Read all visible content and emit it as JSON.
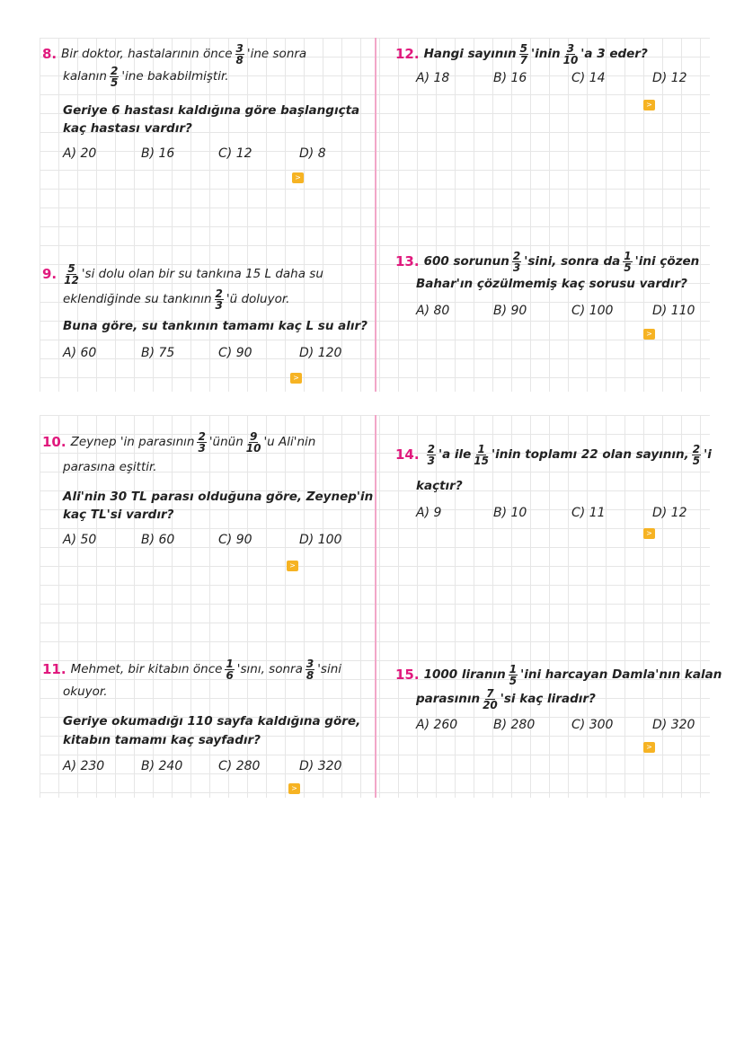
{
  "questions": [
    {
      "number": "8.",
      "lines": [
        {
          "bold": false,
          "segs": [
            {
              "t": "Bir doktor, hastalarının önce "
            },
            {
              "n": "3",
              "d": "8"
            },
            {
              "t": "'ine sonra"
            }
          ]
        },
        {
          "bold": false,
          "segs": [
            {
              "t": "kalanın "
            },
            {
              "n": "2",
              "d": "5"
            },
            {
              "t": "'ine bakabilmiştir."
            }
          ]
        },
        {
          "bold": true,
          "segs": [
            {
              "t": "Geriye 6 hastası kaldığına göre başlangıçta"
            }
          ]
        },
        {
          "bold": true,
          "segs": [
            {
              "t": "kaç hastası vardır?"
            }
          ]
        }
      ],
      "options": [
        "A) 20",
        "B) 16",
        "C) 12",
        "D) 8"
      ]
    },
    {
      "number": "9.",
      "lines": [
        {
          "bold": false,
          "segs": [
            {
              "n": "5",
              "d": "12"
            },
            {
              "t": "'si dolu olan bir su tankına 15 L daha su"
            }
          ]
        },
        {
          "bold": false,
          "segs": [
            {
              "t": "eklendiğinde su tankının "
            },
            {
              "n": "2",
              "d": "3"
            },
            {
              "t": "'ü doluyor."
            }
          ]
        },
        {
          "bold": true,
          "segs": [
            {
              "t": "Buna göre, su tankının tamamı kaç L su alır?"
            }
          ]
        }
      ],
      "options": [
        "A) 60",
        "B) 75",
        "C) 90",
        "D) 120"
      ]
    },
    {
      "number": "10.",
      "lines": [
        {
          "bold": false,
          "segs": [
            {
              "t": "Zeynep 'in parasının "
            },
            {
              "n": "2",
              "d": "3"
            },
            {
              "t": "'ünün "
            },
            {
              "n": "9",
              "d": "10"
            },
            {
              "t": "'u Ali'nin"
            }
          ]
        },
        {
          "bold": false,
          "segs": [
            {
              "t": "parasına eşittir."
            }
          ]
        },
        {
          "bold": true,
          "segs": [
            {
              "t": "Ali'nin 30 TL parası olduğuna göre, Zeynep'in"
            }
          ]
        },
        {
          "bold": true,
          "segs": [
            {
              "t": "kaç TL'si vardır?"
            }
          ]
        }
      ],
      "options": [
        "A) 50",
        "B) 60",
        "C) 90",
        "D) 100"
      ]
    },
    {
      "number": "11.",
      "lines": [
        {
          "bold": false,
          "segs": [
            {
              "t": "Mehmet, bir kitabın önce "
            },
            {
              "n": "1",
              "d": "6"
            },
            {
              "t": "'sını, sonra "
            },
            {
              "n": "3",
              "d": "8"
            },
            {
              "t": "'sini"
            }
          ]
        },
        {
          "bold": false,
          "segs": [
            {
              "t": "okuyor."
            }
          ]
        },
        {
          "bold": true,
          "segs": [
            {
              "t": "Geriye okumadığı 110 sayfa kaldığına göre,"
            }
          ]
        },
        {
          "bold": true,
          "segs": [
            {
              "t": "kitabın tamamı kaç sayfadır?"
            }
          ]
        }
      ],
      "options": [
        "A) 230",
        "B) 240",
        "C) 280",
        "D) 320"
      ]
    },
    {
      "number": "12.",
      "lines": [
        {
          "bold": true,
          "segs": [
            {
              "t": "Hangi sayının "
            },
            {
              "n": "5",
              "d": "7"
            },
            {
              "t": " 'inin "
            },
            {
              "n": "3",
              "d": "10"
            },
            {
              "t": "'a 3 eder?"
            }
          ]
        }
      ],
      "options": [
        "A) 18",
        "B) 16",
        "C) 14",
        "D) 12"
      ]
    },
    {
      "number": "13.",
      "lines": [
        {
          "bold": true,
          "segs": [
            {
              "t": "600 sorunun "
            },
            {
              "n": "2",
              "d": "3"
            },
            {
              "t": "'sini, sonra da "
            },
            {
              "n": "1",
              "d": "5"
            },
            {
              "t": "'ini çözen"
            }
          ]
        },
        {
          "bold": true,
          "segs": [
            {
              "t": "Bahar'ın çözülmemiş kaç sorusu vardır?"
            }
          ]
        }
      ],
      "options": [
        "A) 80",
        "B) 90",
        "C) 100",
        "D) 110"
      ]
    },
    {
      "number": "14.",
      "lines": [
        {
          "bold": true,
          "segs": [
            {
              "n": "2",
              "d": "3"
            },
            {
              "t": "'a ile "
            },
            {
              "n": "1",
              "d": "15"
            },
            {
              "t": "'inin toplamı 22 olan sayının, "
            },
            {
              "n": "2",
              "d": "5"
            },
            {
              "t": "'i"
            }
          ]
        },
        {
          "bold": true,
          "segs": [
            {
              "t": "kaçtır?"
            }
          ]
        }
      ],
      "options": [
        "A) 9",
        "B) 10",
        "C) 11",
        "D) 12"
      ]
    },
    {
      "number": "15.",
      "lines": [
        {
          "bold": true,
          "segs": [
            {
              "t": "1000 liranın "
            },
            {
              "n": "1",
              "d": "5"
            },
            {
              "t": "'ini harcayan Damla'nın kalan"
            }
          ]
        },
        {
          "bold": true,
          "segs": [
            {
              "t": "parasının "
            },
            {
              "n": "7",
              "d": "20"
            },
            {
              "t": "'si kaç liradır?"
            }
          ]
        }
      ],
      "options": [
        "A) 260",
        "B) 280",
        "C) 300",
        "D) 320"
      ]
    }
  ],
  "colors": {
    "number": "#e0197d",
    "divider": "#f2a6c8",
    "answer_icon": "#f6b323"
  },
  "answer_icon": "collapse-arrows-icon"
}
